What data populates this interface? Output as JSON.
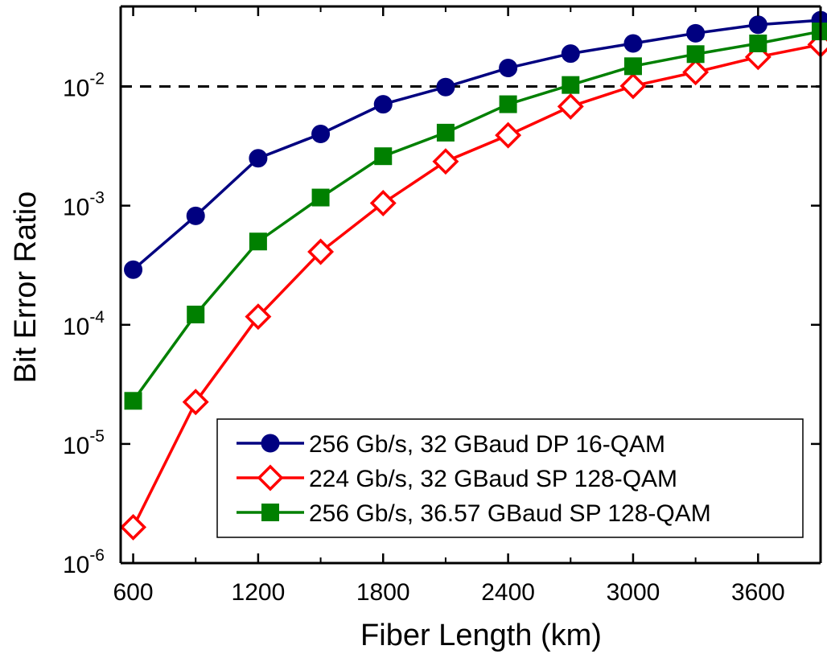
{
  "chart_data": {
    "type": "line",
    "title": "",
    "xlabel": "Fiber Length (km)",
    "ylabel": "Bit Error Ratio",
    "x_ticks": [
      600,
      1200,
      1800,
      2400,
      3000,
      3600
    ],
    "xlim": [
      540,
      3900
    ],
    "y_scale": "log",
    "ylim": [
      1e-06,
      0.047
    ],
    "y_ticks": [
      {
        "value": 1e-06,
        "base": "10",
        "exp": "-6"
      },
      {
        "value": 1e-05,
        "base": "10",
        "exp": "-5"
      },
      {
        "value": 0.0001,
        "base": "10",
        "exp": "-4"
      },
      {
        "value": 0.001,
        "base": "10",
        "exp": "-3"
      },
      {
        "value": 0.01,
        "base": "10",
        "exp": "-2"
      }
    ],
    "reference_line": {
      "y": 0.01,
      "style": "dashed",
      "color": "#000000"
    },
    "legend_position": "bottom-right",
    "grid": false,
    "x": [
      600,
      900,
      1200,
      1500,
      1800,
      2100,
      2400,
      2700,
      3000,
      3300,
      3600,
      3900
    ],
    "series": [
      {
        "name": "256 Gb/s, 32 GBaud DP 16-QAM",
        "color": "#000080",
        "marker": "circle-filled",
        "values": [
          0.00029,
          0.00082,
          0.0025,
          0.004,
          0.0071,
          0.0099,
          0.0143,
          0.0189,
          0.023,
          0.028,
          0.033,
          0.036
        ]
      },
      {
        "name": "224 Gb/s, 32 GBaud SP 128-QAM",
        "color": "#ff0000",
        "marker": "diamond-open",
        "values": [
          2e-06,
          2.25e-05,
          0.000117,
          0.00041,
          0.00105,
          0.00235,
          0.0039,
          0.0068,
          0.0101,
          0.0132,
          0.0177,
          0.0225
        ]
      },
      {
        "name": "256 Gb/s, 36.57 GBaud SP 128-QAM",
        "color": "#008000",
        "marker": "square-filled",
        "values": [
          2.3e-05,
          0.000122,
          0.0005,
          0.00117,
          0.0026,
          0.0041,
          0.0071,
          0.0103,
          0.0148,
          0.0187,
          0.023,
          0.029
        ]
      }
    ]
  }
}
